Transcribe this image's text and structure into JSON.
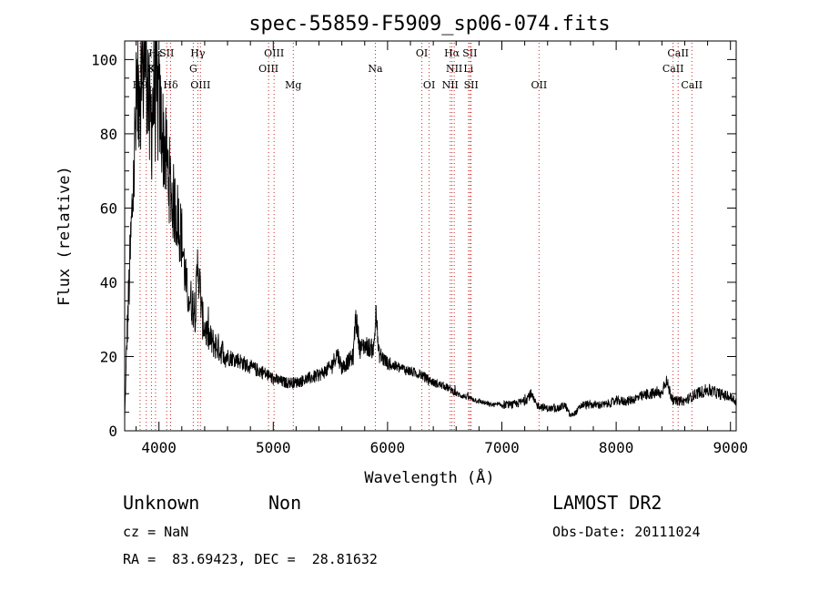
{
  "chart_data": {
    "type": "line",
    "title": "spec-55859-F5909_sp06-074.fits",
    "xlabel": "Wavelength (Å)",
    "ylabel": "Flux (relative)",
    "xlim": [
      3700,
      9050
    ],
    "ylim": [
      0,
      105
    ],
    "xticks": [
      4000,
      5000,
      6000,
      7000,
      8000,
      9000
    ],
    "yticks": [
      0,
      20,
      40,
      60,
      80,
      100
    ],
    "grid": false,
    "spectrum_anchors": {
      "x": [
        3700,
        3720,
        3760,
        3800,
        3830,
        3860,
        3890,
        3920,
        3960,
        4000,
        4040,
        4080,
        4120,
        4160,
        4200,
        4240,
        4280,
        4320,
        4340,
        4380,
        4420,
        4460,
        4500,
        4600,
        4700,
        4800,
        4900,
        5000,
        5100,
        5200,
        5300,
        5400,
        5500,
        5560,
        5600,
        5700,
        5720,
        5760,
        5800,
        5880,
        5900,
        5920,
        6000,
        6100,
        6200,
        6300,
        6400,
        6500,
        6560,
        6600,
        6700,
        6800,
        6900,
        7000,
        7100,
        7200,
        7250,
        7300,
        7400,
        7500,
        7550,
        7600,
        7650,
        7700,
        7800,
        7900,
        8000,
        8100,
        8200,
        8300,
        8400,
        8430,
        8500,
        8600,
        8700,
        8800,
        8900,
        9000,
        9050
      ],
      "y": [
        3,
        25,
        55,
        85,
        95,
        100,
        104,
        80,
        92,
        88,
        78,
        70,
        62,
        58,
        52,
        38,
        35,
        32,
        46,
        30,
        26,
        24,
        23,
        20,
        19,
        17,
        16,
        14,
        13,
        13,
        14,
        15,
        17,
        21,
        17,
        20,
        31,
        22,
        23,
        22,
        33,
        21,
        18,
        17,
        16,
        15,
        13,
        12,
        11,
        10,
        9,
        8,
        7,
        7,
        7,
        8,
        10,
        7,
        6,
        6,
        7,
        4,
        5,
        7,
        7,
        7,
        8,
        8,
        9,
        10,
        10,
        14,
        8,
        8,
        10,
        11,
        10,
        9,
        8
      ]
    },
    "line_markers": [
      {
        "label": "Hε",
        "x": 3970,
        "row": 1
      },
      {
        "label": "H8",
        "x": 3889,
        "row": 2
      },
      {
        "label": "H9",
        "x": 3835,
        "row": 3
      },
      {
        "label": "K",
        "x": 3934,
        "row": 2
      },
      {
        "label": "SII",
        "x": 4068,
        "row": 1
      },
      {
        "label": "Hδ",
        "x": 4102,
        "row": 3
      },
      {
        "label": "Hγ",
        "x": 4340,
        "row": 1
      },
      {
        "label": "G",
        "x": 4300,
        "row": 2
      },
      {
        "label": "OIII",
        "x": 4363,
        "row": 3
      },
      {
        "label": "OIII",
        "x": 5007,
        "row": 1
      },
      {
        "label": "OIII",
        "x": 4959,
        "row": 2
      },
      {
        "label": "Mg",
        "x": 5175,
        "row": 3
      },
      {
        "label": "Na",
        "x": 5893,
        "row": 2
      },
      {
        "label": "OI",
        "x": 6300,
        "row": 1
      },
      {
        "label": "OI",
        "x": 6364,
        "row": 3
      },
      {
        "label": "Hα",
        "x": 6563,
        "row": 1
      },
      {
        "label": "SII",
        "x": 6720,
        "row": 1
      },
      {
        "label": "NII",
        "x": 6583,
        "row": 2
      },
      {
        "label": "Li",
        "x": 6708,
        "row": 2
      },
      {
        "label": "NII",
        "x": 6548,
        "row": 3
      },
      {
        "label": "SII",
        "x": 6731,
        "row": 3
      },
      {
        "label": "OII",
        "x": 7325,
        "row": 3
      },
      {
        "label": "CaII",
        "x": 8542,
        "row": 1
      },
      {
        "label": "CaII",
        "x": 8498,
        "row": 2
      },
      {
        "label": "CaII",
        "x": 8662,
        "row": 3
      }
    ]
  },
  "info": {
    "class_label": "Unknown",
    "subclass_label": "Non",
    "survey": "LAMOST DR2",
    "cz": "cz = NaN",
    "obs_date": "Obs-Date: 20111024",
    "coords": "RA =  83.69423, DEC =  28.81632"
  }
}
